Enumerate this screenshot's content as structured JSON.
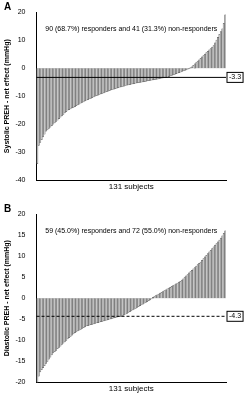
{
  "chart_data": [
    {
      "type": "bar",
      "panel": "A",
      "title": "90 (68.7%) responders and 41 (31.3%) non-responders",
      "y_label": "Systolic PREH - net effect (mmHg)",
      "x_label": "131 subjects",
      "categories": [
        null,
        null,
        null,
        null,
        null,
        null,
        null,
        null,
        null,
        null,
        null,
        null,
        null,
        null,
        null,
        null,
        null,
        null,
        null,
        null,
        null,
        null,
        null,
        null,
        null,
        null,
        null,
        null,
        null,
        null,
        null,
        null,
        null,
        null,
        null,
        null,
        null,
        null,
        null,
        null,
        null,
        null,
        null,
        null,
        null,
        null,
        null,
        null,
        null,
        null,
        null,
        null,
        null,
        null,
        null,
        null,
        null,
        null,
        null,
        null,
        null,
        null,
        null,
        null,
        null,
        null,
        null,
        null,
        null,
        null,
        null,
        null,
        null,
        null,
        null,
        null,
        null,
        null,
        null,
        null,
        null,
        null,
        null,
        null,
        null,
        null,
        null,
        null,
        null,
        null,
        null,
        null,
        null,
        null,
        null,
        null,
        null,
        null,
        null,
        null,
        null,
        null,
        null,
        null,
        null,
        null,
        null,
        null,
        null,
        null,
        null,
        null,
        null,
        null,
        null,
        null,
        null,
        null,
        null,
        null,
        null,
        null,
        null,
        null,
        null,
        null,
        null,
        null,
        null,
        null,
        null
      ],
      "values": [
        -34,
        -27.5,
        -26.5,
        -25.5,
        -24.5,
        -23.5,
        -22.5,
        -22,
        -21.5,
        -21,
        -20.5,
        -20,
        -19.5,
        -19,
        -18.5,
        -18,
        -17.5,
        -17,
        -16.5,
        -16,
        -15.5,
        -15,
        -14.8,
        -14.5,
        -14.2,
        -14,
        -13.7,
        -13.4,
        -13.1,
        -12.8,
        -12.5,
        -12.2,
        -12,
        -11.7,
        -11.4,
        -11.2,
        -11,
        -10.8,
        -10.5,
        -10.3,
        -10,
        -9.8,
        -9.6,
        -9.4,
        -9.2,
        -9,
        -8.8,
        -8.6,
        -8.4,
        -8.2,
        -8,
        -7.8,
        -7.6,
        -7.5,
        -7.3,
        -7.1,
        -7,
        -6.8,
        -6.7,
        -6.5,
        -6.4,
        -6.2,
        -6.1,
        -6,
        -5.9,
        -5.7,
        -5.6,
        -5.5,
        -5.4,
        -5.3,
        -5.2,
        -5.1,
        -5,
        -4.9,
        -4.8,
        -4.7,
        -4.6,
        -4.5,
        -4.4,
        -4.3,
        -4.2,
        -4.1,
        -4,
        -3.9,
        -3.8,
        -3.7,
        -3.6,
        -3.5,
        -3.4,
        -3.4,
        -3.2,
        -3,
        -2.8,
        -2.6,
        -2.4,
        -2.2,
        -2,
        -1.8,
        -1.6,
        -1.4,
        -1.2,
        -1,
        -0.8,
        -0.6,
        -0.4,
        -0.2,
        0.2,
        0.5,
        1,
        1.5,
        2,
        2.5,
        3,
        3.5,
        4,
        4.5,
        5,
        5.5,
        6,
        6.5,
        7,
        7.5,
        8,
        9,
        10,
        11,
        12,
        13,
        14,
        16,
        19
      ],
      "color": "#c8c8c8",
      "reference_line": {
        "value": -3.3,
        "label": "-3.3",
        "line_style": "solid"
      },
      "ylim": [
        -40,
        20
      ],
      "yticks": [
        -40,
        -30,
        -20,
        -10,
        0,
        10,
        20
      ],
      "grid": false,
      "tick_labels": "y"
    },
    {
      "type": "bar",
      "panel": "B",
      "title": "59 (45.0%) responders and 72 (55.0%) non-responders",
      "y_label": "Diastolic PREH - net effect (mmHg)",
      "x_label": "131 subjects",
      "categories": [
        null,
        null,
        null,
        null,
        null,
        null,
        null,
        null,
        null,
        null,
        null,
        null,
        null,
        null,
        null,
        null,
        null,
        null,
        null,
        null,
        null,
        null,
        null,
        null,
        null,
        null,
        null,
        null,
        null,
        null,
        null,
        null,
        null,
        null,
        null,
        null,
        null,
        null,
        null,
        null,
        null,
        null,
        null,
        null,
        null,
        null,
        null,
        null,
        null,
        null,
        null,
        null,
        null,
        null,
        null,
        null,
        null,
        null,
        null,
        null,
        null,
        null,
        null,
        null,
        null,
        null,
        null,
        null,
        null,
        null,
        null,
        null,
        null,
        null,
        null,
        null,
        null,
        null,
        null,
        null,
        null,
        null,
        null,
        null,
        null,
        null,
        null,
        null,
        null,
        null,
        null,
        null,
        null,
        null,
        null,
        null,
        null,
        null,
        null,
        null,
        null,
        null,
        null,
        null,
        null,
        null,
        null,
        null,
        null,
        null,
        null,
        null,
        null,
        null,
        null,
        null,
        null,
        null,
        null,
        null,
        null,
        null,
        null,
        null,
        null,
        null,
        null,
        null,
        null,
        null,
        null
      ],
      "values": [
        -20,
        -18.5,
        -17.5,
        -17,
        -16.5,
        -16,
        -15.5,
        -15,
        -14.5,
        -14,
        -13.5,
        -13,
        -12.7,
        -12.4,
        -12,
        -11.7,
        -11.4,
        -11,
        -10.7,
        -10.4,
        -10,
        -9.7,
        -9.4,
        -9.1,
        -8.8,
        -8.5,
        -8.2,
        -8,
        -7.8,
        -7.6,
        -7.4,
        -7.2,
        -7,
        -6.8,
        -6.6,
        -6.5,
        -6.4,
        -6.3,
        -6.2,
        -6.1,
        -6,
        -5.9,
        -5.8,
        -5.7,
        -5.6,
        -5.5,
        -5.4,
        -5.3,
        -5.2,
        -5.1,
        -5,
        -4.9,
        -4.8,
        -4.7,
        -4.6,
        -4.5,
        -4.4,
        -4.4,
        -4.35,
        -4.2,
        -4,
        -3.8,
        -3.6,
        -3.4,
        -3.2,
        -3,
        -2.8,
        -2.6,
        -2.4,
        -2.2,
        -2,
        -1.8,
        -1.6,
        -1.4,
        -1.2,
        -1,
        -0.8,
        -0.6,
        -0.4,
        -0.2,
        0.2,
        0.4,
        0.6,
        0.8,
        1,
        1.2,
        1.4,
        1.6,
        1.8,
        2,
        2.2,
        2.4,
        2.6,
        2.8,
        3,
        3.2,
        3.4,
        3.6,
        3.8,
        4,
        4.3,
        4.6,
        5,
        5.3,
        5.6,
        6,
        6.3,
        6.6,
        7,
        7.3,
        7.6,
        8,
        8.3,
        8.6,
        9,
        9.4,
        9.8,
        10.2,
        10.6,
        11,
        11.4,
        11.8,
        12.2,
        12.6,
        13,
        13.4,
        13.8,
        14.3,
        14.8,
        15.4,
        16
      ],
      "color": "#c8c8c8",
      "reference_line": {
        "value": -4.3,
        "label": "-4.3",
        "line_style": "dashed"
      },
      "ylim": [
        -20,
        20
      ],
      "yticks": [
        -20,
        -15,
        -10,
        -5,
        0,
        5,
        10,
        15,
        20
      ],
      "grid": false,
      "tick_labels": "y"
    }
  ]
}
